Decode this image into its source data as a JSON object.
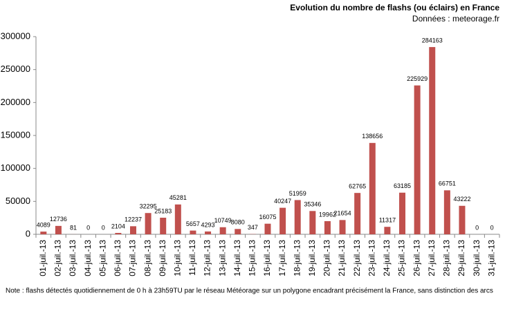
{
  "chart_data": {
    "type": "bar",
    "title": "Evolution  du nombre de flashs (ou éclairs)  en France",
    "subtitle": "Données : meteorage.fr",
    "note": "Note : flashs détectés quotidiennement de 0 h à 23h59TU par le réseau Météorage sur un polygone encadrant précisément la France, sans distinction des arcs",
    "categories": [
      "01-juil.-13",
      "02-juil.-13",
      "03-juil.-13",
      "04-juil.-13",
      "05-juil.-13",
      "06-juil.-13",
      "07-juil.-13",
      "08-juil.-13",
      "09-juil.-13",
      "10-juil.-13",
      "11-juil.-13",
      "12-juil.-13",
      "13-juil.-13",
      "14-juil.-13",
      "15-juil.-13",
      "16-juil.-13",
      "17-juil.-13",
      "18-juil.-13",
      "19-juil.-13",
      "20-juil.-13",
      "21-juil.-13",
      "22-juil.-13",
      "23-juil.-13",
      "24-juil.-13",
      "25-juil.-13",
      "26-juil.-13",
      "27-juil.-13",
      "28-juil.-13",
      "29-juil.-13",
      "30-juil.-13",
      "31-juil.-13"
    ],
    "values": [
      4089,
      12736,
      81,
      0,
      0,
      2104,
      12237,
      32295,
      25183,
      45281,
      5657,
      4293,
      10749,
      8080,
      347,
      16075,
      40247,
      51959,
      35346,
      19962,
      21654,
      62765,
      138656,
      11317,
      63185,
      225929,
      284163,
      66751,
      43222,
      0,
      0
    ],
    "color": "#c0504d",
    "ylim": [
      0,
      300000
    ],
    "yticks": [
      0,
      50000,
      100000,
      150000,
      200000,
      250000,
      300000
    ]
  }
}
